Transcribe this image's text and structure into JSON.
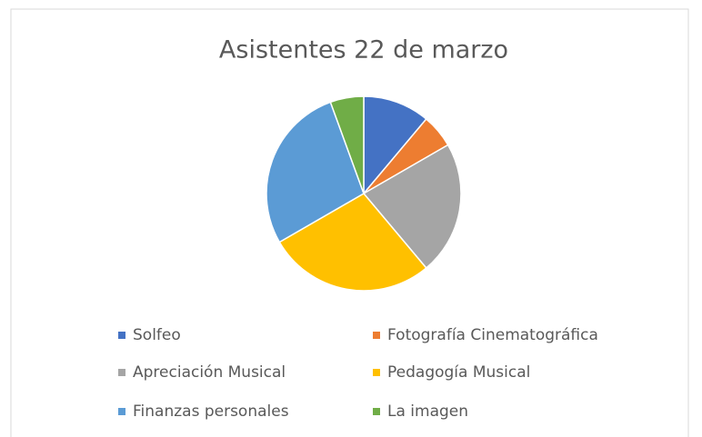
{
  "chart_data": {
    "type": "pie",
    "title": "Asistentes 22 de marzo",
    "categories": [
      "Solfeo",
      "Fotografía Cinematográfica",
      "Apreciación Musical",
      "Pedagogía Musical",
      "Finanzas personales",
      "La imagen"
    ],
    "values": [
      2,
      1,
      4,
      5,
      5,
      1
    ],
    "colors": [
      "#4472c4",
      "#ed7d31",
      "#a5a5a5",
      "#ffc000",
      "#5b9bd5",
      "#70ad47"
    ],
    "legend": "bottom"
  }
}
